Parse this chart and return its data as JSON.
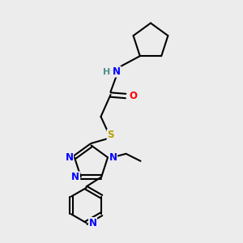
{
  "background_color": "#ececec",
  "atom_colors": {
    "C": "#000000",
    "N": "#0000ff",
    "O": "#ff0000",
    "S": "#b8a000",
    "H": "#4f9090"
  },
  "bond_color": "#000000",
  "figsize": [
    3.0,
    3.0
  ],
  "dpi": 100
}
